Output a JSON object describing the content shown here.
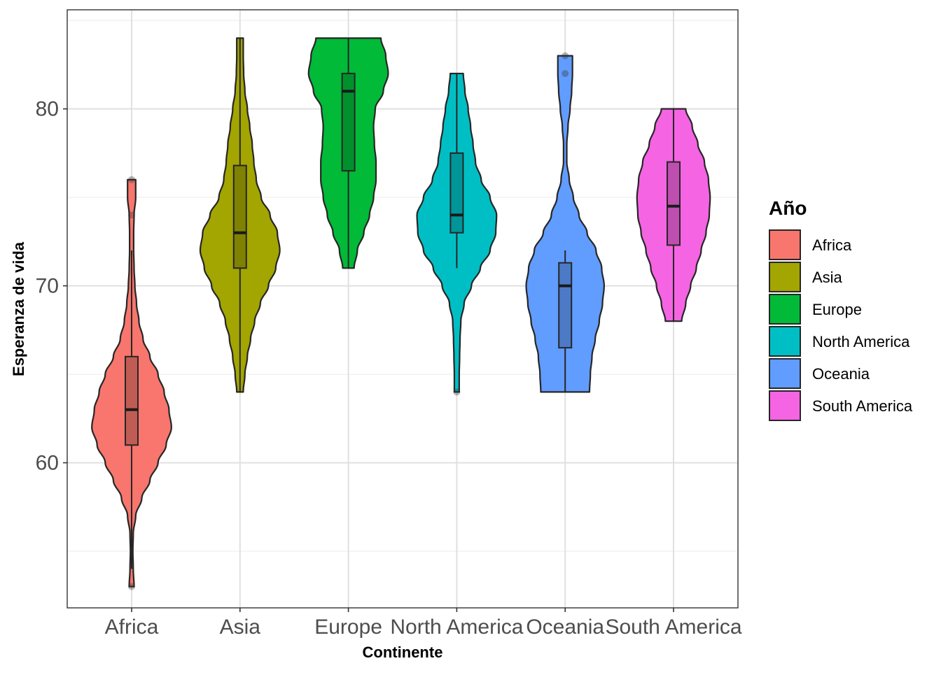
{
  "chart_data": {
    "type": "violin",
    "title": "",
    "xlabel": "Continente",
    "ylabel": "Esperanza de vida",
    "ylim": [
      51.8,
      85.6
    ],
    "yticks": [
      60,
      70,
      80
    ],
    "grid": true,
    "legend": {
      "title": "Año",
      "placement": "right",
      "entries": [
        "Africa",
        "Asia",
        "Europe",
        "North America",
        "Oceania",
        "South America"
      ]
    },
    "categories": [
      "Africa",
      "Asia",
      "Europe",
      "North America",
      "Oceania",
      "South America"
    ],
    "series": [
      {
        "name": "Africa",
        "color": "#F8766D",
        "min": 53,
        "max": 76,
        "box": {
          "q1": 61,
          "median": 63,
          "q3": 66,
          "whisker_low": 54,
          "whisker_high": 72
        },
        "outliers": [
          53,
          74,
          76
        ],
        "density": [
          [
            53,
            0.06
          ],
          [
            54,
            0.04
          ],
          [
            55,
            0.03
          ],
          [
            56,
            0.04
          ],
          [
            57,
            0.1
          ],
          [
            58,
            0.25
          ],
          [
            59,
            0.45
          ],
          [
            60,
            0.65
          ],
          [
            61,
            0.85
          ],
          [
            62,
            0.98
          ],
          [
            63,
            0.92
          ],
          [
            64,
            0.8
          ],
          [
            65,
            0.65
          ],
          [
            66,
            0.45
          ],
          [
            67,
            0.28
          ],
          [
            68,
            0.18
          ],
          [
            69,
            0.12
          ],
          [
            70,
            0.08
          ],
          [
            71,
            0.06
          ],
          [
            72,
            0.05
          ],
          [
            73,
            0.05
          ],
          [
            74,
            0.06
          ],
          [
            75,
            0.1
          ],
          [
            76,
            0.1
          ]
        ]
      },
      {
        "name": "Asia",
        "color": "#A3A500",
        "min": 64,
        "max": 84,
        "box": {
          "q1": 71,
          "median": 73,
          "q3": 76.8,
          "whisker_low": 64,
          "whisker_high": 84
        },
        "outliers": [],
        "density": [
          [
            64,
            0.08
          ],
          [
            65,
            0.12
          ],
          [
            66,
            0.18
          ],
          [
            67,
            0.26
          ],
          [
            68,
            0.36
          ],
          [
            69,
            0.5
          ],
          [
            70,
            0.7
          ],
          [
            71,
            0.88
          ],
          [
            72,
            0.98
          ],
          [
            73,
            0.92
          ],
          [
            74,
            0.74
          ],
          [
            75,
            0.52
          ],
          [
            76,
            0.4
          ],
          [
            77,
            0.34
          ],
          [
            78,
            0.3
          ],
          [
            79,
            0.24
          ],
          [
            80,
            0.18
          ],
          [
            81,
            0.12
          ],
          [
            82,
            0.09
          ],
          [
            83,
            0.08
          ],
          [
            84,
            0.08
          ]
        ]
      },
      {
        "name": "Europe",
        "color": "#00BA38",
        "min": 71,
        "max": 84,
        "box": {
          "q1": 76.5,
          "median": 81,
          "q3": 82,
          "whisker_low": 71,
          "whisker_high": 84
        },
        "outliers": [],
        "density": [
          [
            71,
            0.14
          ],
          [
            72,
            0.22
          ],
          [
            73,
            0.38
          ],
          [
            74,
            0.52
          ],
          [
            75,
            0.62
          ],
          [
            76,
            0.68
          ],
          [
            77,
            0.68
          ],
          [
            78,
            0.64
          ],
          [
            79,
            0.62
          ],
          [
            80,
            0.66
          ],
          [
            81,
            0.86
          ],
          [
            82,
            0.98
          ],
          [
            83,
            0.92
          ],
          [
            84,
            0.8
          ]
        ]
      },
      {
        "name": "North America",
        "color": "#00BFC4",
        "min": 64,
        "max": 82,
        "box": {
          "q1": 73,
          "median": 74,
          "q3": 77.5,
          "whisker_low": 71,
          "whisker_high": 82
        },
        "outliers": [
          64
        ],
        "density": [
          [
            64,
            0.06
          ],
          [
            65,
            0.06
          ],
          [
            66,
            0.07
          ],
          [
            67,
            0.08
          ],
          [
            68,
            0.1
          ],
          [
            69,
            0.18
          ],
          [
            70,
            0.36
          ],
          [
            71,
            0.58
          ],
          [
            72,
            0.82
          ],
          [
            73,
            0.96
          ],
          [
            74,
            0.98
          ],
          [
            75,
            0.82
          ],
          [
            76,
            0.6
          ],
          [
            77,
            0.46
          ],
          [
            78,
            0.4
          ],
          [
            79,
            0.34
          ],
          [
            80,
            0.28
          ],
          [
            81,
            0.2
          ],
          [
            82,
            0.16
          ]
        ]
      },
      {
        "name": "Oceania",
        "color": "#619CFF",
        "min": 64,
        "max": 83,
        "box": {
          "q1": 66.5,
          "median": 70,
          "q3": 71.3,
          "whisker_low": 64,
          "whisker_high": 72
        },
        "outliers": [
          82,
          83
        ],
        "density": [
          [
            64,
            0.6
          ],
          [
            65,
            0.62
          ],
          [
            66,
            0.66
          ],
          [
            67,
            0.74
          ],
          [
            68,
            0.84
          ],
          [
            69,
            0.92
          ],
          [
            70,
            0.96
          ],
          [
            71,
            0.9
          ],
          [
            72,
            0.76
          ],
          [
            73,
            0.54
          ],
          [
            74,
            0.34
          ],
          [
            75,
            0.2
          ],
          [
            76,
            0.1
          ],
          [
            77,
            0.04
          ],
          [
            78,
            0.04
          ],
          [
            79,
            0.07
          ],
          [
            80,
            0.12
          ],
          [
            81,
            0.16
          ],
          [
            82,
            0.18
          ],
          [
            83,
            0.18
          ]
        ]
      },
      {
        "name": "South America",
        "color": "#F564E3",
        "min": 68,
        "max": 80,
        "box": {
          "q1": 72.3,
          "median": 74.5,
          "q3": 77,
          "whisker_low": 68,
          "whisker_high": 80
        },
        "outliers": [],
        "density": [
          [
            68,
            0.2
          ],
          [
            69,
            0.3
          ],
          [
            70,
            0.42
          ],
          [
            71,
            0.56
          ],
          [
            72,
            0.68
          ],
          [
            73,
            0.8
          ],
          [
            74,
            0.88
          ],
          [
            75,
            0.9
          ],
          [
            76,
            0.86
          ],
          [
            77,
            0.76
          ],
          [
            78,
            0.6
          ],
          [
            79,
            0.46
          ],
          [
            80,
            0.3
          ]
        ]
      }
    ]
  }
}
